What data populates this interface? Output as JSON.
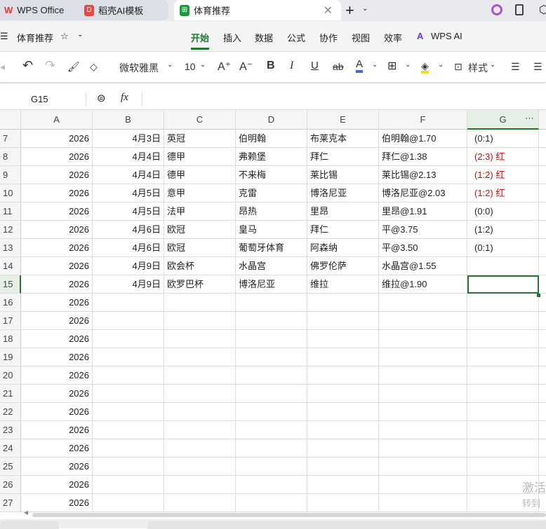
{
  "tabs": [
    {
      "label": "WPS Office"
    },
    {
      "label": "稻壳AI模板"
    },
    {
      "label": "体育推荐"
    }
  ],
  "doc_title": "体育推荐",
  "ribbon": [
    "开始",
    "插入",
    "数据",
    "公式",
    "协作",
    "视图",
    "效率",
    "WPS AI"
  ],
  "toolbar": {
    "font": "微软雅黑",
    "size": "10",
    "style": "样式"
  },
  "formula": {
    "cell_ref": "G15",
    "fx": "fx",
    "value": ""
  },
  "columns": [
    "A",
    "B",
    "C",
    "D",
    "E",
    "F",
    "G"
  ],
  "rows": [
    {
      "n": "7",
      "a": "2026",
      "b": "4月3日",
      "c": "英冠",
      "d": "伯明翰",
      "e": "布莱克本",
      "f": "伯明翰@1.70",
      "g": "(0:1)",
      "red": false
    },
    {
      "n": "8",
      "a": "2026",
      "b": "4月4日",
      "c": "德甲",
      "d": "弗赖堡",
      "e": "拜仁",
      "f": "拜仁@1.38",
      "g": "(2:3)  红",
      "red": true
    },
    {
      "n": "9",
      "a": "2026",
      "b": "4月4日",
      "c": "德甲",
      "d": "不来梅",
      "e": "莱比锡",
      "f": "莱比锡@2.13",
      "g": "(1:2)  红",
      "red": true
    },
    {
      "n": "10",
      "a": "2026",
      "b": "4月5日",
      "c": "意甲",
      "d": "克雷",
      "e": "博洛尼亚",
      "f": "博洛尼亚@2.03",
      "g": "(1:2)  红",
      "red": true
    },
    {
      "n": "11",
      "a": "2026",
      "b": "4月5日",
      "c": "法甲",
      "d": "昂热",
      "e": "里昂",
      "f": "里昂@1.91",
      "g": "(0:0)",
      "red": false
    },
    {
      "n": "12",
      "a": "2026",
      "b": "4月6日",
      "c": "欧冠",
      "d": "皇马",
      "e": "拜仁",
      "f": "平@3.75",
      "g": "(1:2)",
      "red": false
    },
    {
      "n": "13",
      "a": "2026",
      "b": "4月6日",
      "c": "欧冠",
      "d": "葡萄牙体育",
      "e": "阿森纳",
      "f": "平@3.50",
      "g": "(0:1)",
      "red": false
    },
    {
      "n": "14",
      "a": "2026",
      "b": "4月9日",
      "c": "欧会杯",
      "d": "水晶宫",
      "e": "佛罗伦萨",
      "f": "水晶宫@1.55",
      "g": "",
      "red": false
    },
    {
      "n": "15",
      "a": "2026",
      "b": "4月9日",
      "c": "欧罗巴杯",
      "d": "博洛尼亚",
      "e": "维拉",
      "f": "维拉@1.90",
      "g": "",
      "red": false
    },
    {
      "n": "16",
      "a": "2026"
    },
    {
      "n": "17",
      "a": "2026"
    },
    {
      "n": "18",
      "a": "2026"
    },
    {
      "n": "19",
      "a": "2026"
    },
    {
      "n": "20",
      "a": "2026"
    },
    {
      "n": "21",
      "a": "2026"
    },
    {
      "n": "22",
      "a": "2026"
    },
    {
      "n": "23",
      "a": "2026"
    },
    {
      "n": "24",
      "a": "2026"
    },
    {
      "n": "25",
      "a": "2026"
    },
    {
      "n": "26",
      "a": "2026"
    },
    {
      "n": "27",
      "a": "2026"
    }
  ],
  "watermark": [
    "激活",
    "转到"
  ],
  "colors": {
    "accent": "#1f7a2e",
    "red": "#e00000"
  }
}
